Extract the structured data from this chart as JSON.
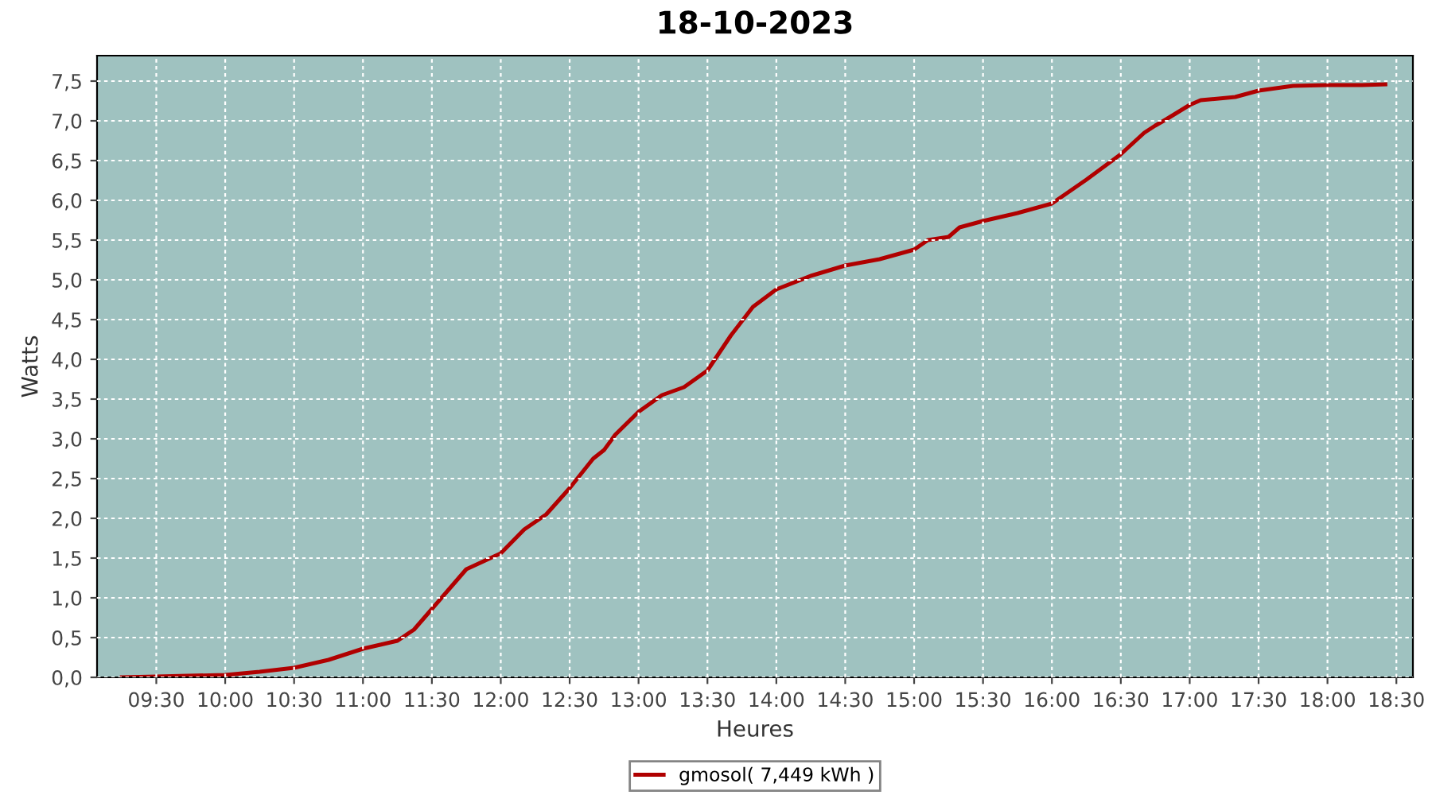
{
  "chart_data": {
    "type": "line",
    "title": "18-10-2023",
    "xlabel": "Heures",
    "ylabel": "Watts",
    "series": [
      {
        "name": "gmosol( 7,449 kWh )",
        "color": "#b00000",
        "x": [
          9.25,
          9.5,
          10.0,
          10.25,
          10.5,
          10.75,
          11.0,
          11.25,
          11.37,
          11.5,
          11.67,
          11.75,
          12.0,
          12.17,
          12.33,
          12.5,
          12.67,
          12.75,
          12.83,
          13.0,
          13.17,
          13.33,
          13.5,
          13.67,
          13.83,
          14.0,
          14.25,
          14.5,
          14.75,
          15.0,
          15.1,
          15.25,
          15.33,
          15.5,
          15.75,
          16.0,
          16.25,
          16.5,
          16.67,
          16.75,
          16.83,
          17.0,
          17.08,
          17.33,
          17.5,
          17.75,
          18.0,
          18.25,
          18.42
        ],
        "values": [
          0,
          0.01,
          0.03,
          0.07,
          0.12,
          0.22,
          0.36,
          0.46,
          0.6,
          0.86,
          1.2,
          1.36,
          1.56,
          1.86,
          2.05,
          2.38,
          2.75,
          2.86,
          3.05,
          3.34,
          3.55,
          3.65,
          3.86,
          4.3,
          4.66,
          4.88,
          5.05,
          5.18,
          5.26,
          5.38,
          5.5,
          5.54,
          5.66,
          5.74,
          5.84,
          5.96,
          6.26,
          6.58,
          6.85,
          6.94,
          7.02,
          7.2,
          7.26,
          7.3,
          7.38,
          7.44,
          7.45,
          7.45,
          7.46
        ]
      }
    ],
    "xlim": [
      9.07,
      18.62
    ],
    "xticks": [
      {
        "value": 9.5,
        "label": "09:30"
      },
      {
        "value": 10,
        "label": "10:00"
      },
      {
        "value": 10.5,
        "label": "10:30"
      },
      {
        "value": 11,
        "label": "11:00"
      },
      {
        "value": 11.5,
        "label": "11:30"
      },
      {
        "value": 12,
        "label": "12:00"
      },
      {
        "value": 12.5,
        "label": "12:30"
      },
      {
        "value": 13,
        "label": "13:00"
      },
      {
        "value": 13.5,
        "label": "13:30"
      },
      {
        "value": 14,
        "label": "14:00"
      },
      {
        "value": 14.5,
        "label": "14:30"
      },
      {
        "value": 15,
        "label": "15:00"
      },
      {
        "value": 15.5,
        "label": "15:30"
      },
      {
        "value": 16,
        "label": "16:00"
      },
      {
        "value": 16.5,
        "label": "16:30"
      },
      {
        "value": 17,
        "label": "17:00"
      },
      {
        "value": 17.5,
        "label": "17:30"
      },
      {
        "value": 18,
        "label": "18:00"
      },
      {
        "value": 18.5,
        "label": "18:30"
      }
    ],
    "ylim": [
      0,
      7.82
    ],
    "yticks": [
      {
        "value": 0,
        "label": "0,0"
      },
      {
        "value": 0.5,
        "label": "0,5"
      },
      {
        "value": 1,
        "label": "1,0"
      },
      {
        "value": 1.5,
        "label": "1,5"
      },
      {
        "value": 2,
        "label": "2,0"
      },
      {
        "value": 2.5,
        "label": "2,5"
      },
      {
        "value": 3,
        "label": "3,0"
      },
      {
        "value": 3.5,
        "label": "3,5"
      },
      {
        "value": 4,
        "label": "4,0"
      },
      {
        "value": 4.5,
        "label": "4,5"
      },
      {
        "value": 5,
        "label": "5,0"
      },
      {
        "value": 5.5,
        "label": "5,5"
      },
      {
        "value": 6,
        "label": "6,0"
      },
      {
        "value": 6.5,
        "label": "6,5"
      },
      {
        "value": 7,
        "label": "7,0"
      },
      {
        "value": 7.5,
        "label": "7,5"
      }
    ],
    "grid": true,
    "legend": "bottom",
    "marker": "none",
    "line_style": "solid"
  }
}
